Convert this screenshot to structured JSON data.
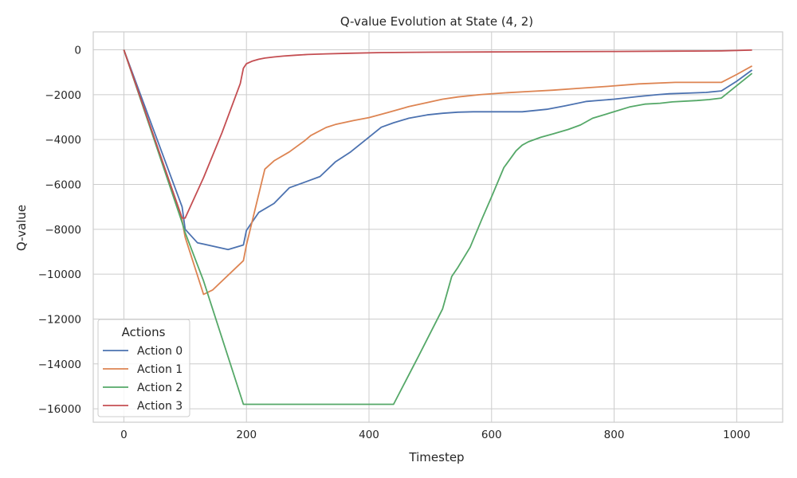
{
  "chart_data": {
    "type": "line",
    "title": "Q-value Evolution at State (4, 2)",
    "xlabel": "Timestep",
    "ylabel": "Q-value",
    "xlim": [
      -50,
      1075
    ],
    "ylim": [
      -16600,
      800
    ],
    "xticks": [
      0,
      200,
      400,
      600,
      800,
      1000
    ],
    "yticks": [
      0,
      -2000,
      -4000,
      -6000,
      -8000,
      -10000,
      -12000,
      -14000,
      -16000
    ],
    "xtick_labels": [
      "0",
      "200",
      "400",
      "600",
      "800",
      "1000"
    ],
    "ytick_labels": [
      "0",
      "−2000",
      "−4000",
      "−6000",
      "−8000",
      "−10000",
      "−12000",
      "−14000",
      "−16000"
    ],
    "grid": true,
    "legend": {
      "title": "Actions",
      "placement": "lower-left"
    },
    "series": [
      {
        "name": "Action 0",
        "color": "#4c72b0",
        "x": [
          0,
          95,
          100,
          120,
          170,
          195,
          200,
          220,
          245,
          270,
          295,
          320,
          345,
          370,
          395,
          420,
          440,
          465,
          495,
          520,
          545,
          570,
          600,
          650,
          690,
          720,
          755,
          800,
          840,
          870,
          890,
          920,
          950,
          975,
          1000,
          1025
        ],
        "y": [
          0,
          -7000,
          -8000,
          -8600,
          -8900,
          -8700,
          -8050,
          -7250,
          -6850,
          -6150,
          -5900,
          -5650,
          -5000,
          -4550,
          -4000,
          -3450,
          -3250,
          -3050,
          -2900,
          -2830,
          -2780,
          -2760,
          -2760,
          -2760,
          -2650,
          -2500,
          -2300,
          -2200,
          -2080,
          -2000,
          -1960,
          -1930,
          -1900,
          -1830,
          -1400,
          -900
        ]
      },
      {
        "name": "Action 1",
        "color": "#dd8452",
        "x": [
          0,
          95,
          100,
          130,
          145,
          195,
          200,
          230,
          245,
          270,
          295,
          305,
          330,
          345,
          375,
          400,
          430,
          465,
          495,
          520,
          545,
          580,
          620,
          660,
          700,
          740,
          790,
          840,
          900,
          950,
          975,
          1000,
          1025
        ],
        "y": [
          0,
          -7600,
          -8350,
          -10900,
          -10700,
          -9400,
          -8700,
          -5320,
          -4950,
          -4550,
          -4050,
          -3820,
          -3460,
          -3330,
          -3150,
          -3020,
          -2800,
          -2530,
          -2350,
          -2200,
          -2100,
          -2000,
          -1920,
          -1860,
          -1800,
          -1720,
          -1630,
          -1520,
          -1450,
          -1450,
          -1450,
          -1100,
          -720
        ]
      },
      {
        "name": "Action 2",
        "color": "#55a868",
        "x": [
          0,
          95,
          100,
          130,
          195,
          200,
          300,
          400,
          435,
          440,
          480,
          520,
          535,
          545,
          565,
          585,
          600,
          620,
          640,
          650,
          660,
          680,
          700,
          725,
          745,
          765,
          795,
          825,
          850,
          875,
          895,
          935,
          955,
          975,
          1000,
          1025
        ],
        "y": [
          0,
          -7700,
          -8150,
          -10300,
          -15800,
          -15800,
          -15800,
          -15800,
          -15800,
          -15800,
          -13700,
          -11550,
          -10100,
          -9700,
          -8800,
          -7500,
          -6550,
          -5250,
          -4500,
          -4250,
          -4100,
          -3900,
          -3750,
          -3550,
          -3350,
          -3050,
          -2800,
          -2550,
          -2420,
          -2380,
          -2320,
          -2260,
          -2220,
          -2150,
          -1600,
          -1050
        ]
      },
      {
        "name": "Action 3",
        "color": "#c44e52",
        "x": [
          0,
          95,
          100,
          130,
          160,
          190,
          195,
          200,
          210,
          220,
          230,
          245,
          260,
          280,
          300,
          330,
          370,
          420,
          500,
          600,
          700,
          800,
          900,
          975,
          1000,
          1025
        ],
        "y": [
          0,
          -7500,
          -7500,
          -5700,
          -3700,
          -1500,
          -820,
          -620,
          -500,
          -420,
          -370,
          -320,
          -280,
          -240,
          -210,
          -180,
          -150,
          -125,
          -105,
          -95,
          -85,
          -75,
          -60,
          -50,
          -30,
          -10
        ]
      }
    ]
  }
}
